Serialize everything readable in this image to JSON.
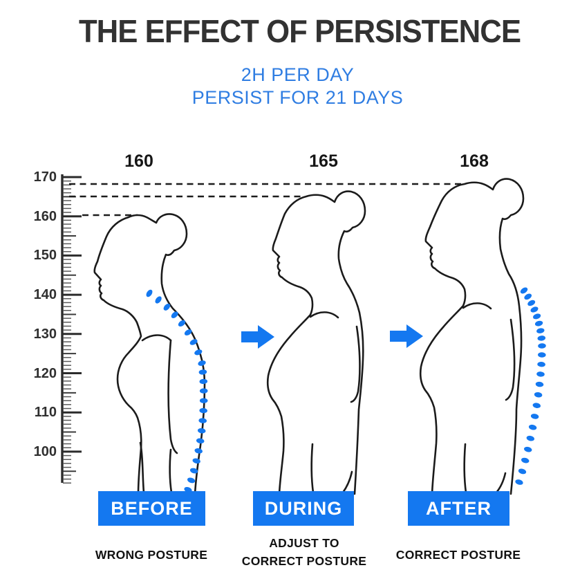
{
  "title": "THE EFFECT OF PERSISTENCE",
  "subtitle": {
    "line1": "2H PER DAY",
    "line2": "PERSIST FOR 21 DAYS"
  },
  "ruler": {
    "unit_labels": [
      "170",
      "160",
      "150",
      "140",
      "130",
      "120",
      "110",
      "100"
    ]
  },
  "stages": [
    {
      "height": "160",
      "stage_label": "BEFORE",
      "caption": "WRONG POSTURE"
    },
    {
      "height": "165",
      "stage_label": "DURING",
      "caption": "ADJUST TO\nCORRECT POSTURE"
    },
    {
      "height": "168",
      "stage_label": "AFTER",
      "caption": "CORRECT POSTURE"
    }
  ],
  "colors": {
    "accent_blue": "#1478F0",
    "subtitle_blue": "#2F7DE2",
    "line_ink": "#1b1b1b"
  }
}
